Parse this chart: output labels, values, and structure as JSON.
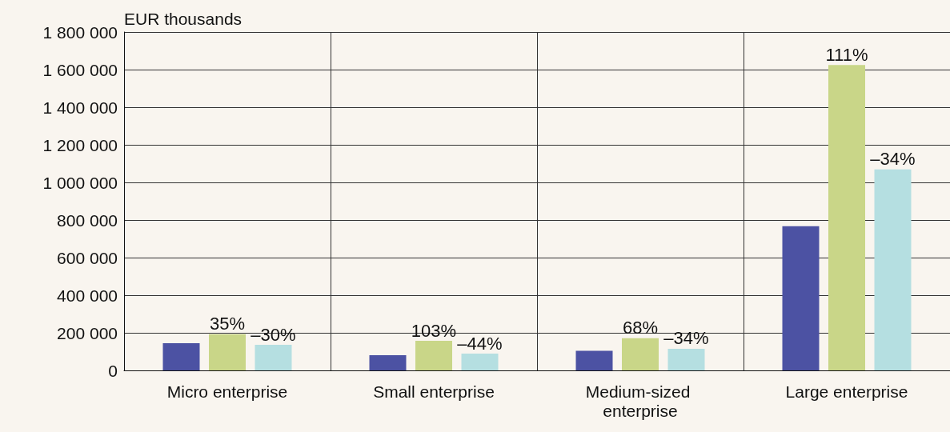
{
  "chart_data": {
    "type": "bar",
    "ylabel": "EUR thousands",
    "categories": [
      "Micro enterprise",
      "Small enterprise",
      "Medium-sized enterprise",
      "Large enterprise"
    ],
    "series": [
      {
        "color": "#4c52a3",
        "values": [
          145000,
          81000,
          104000,
          767000
        ]
      },
      {
        "color": "#c9d688",
        "values": [
          193000,
          157000,
          171000,
          1624000
        ]
      },
      {
        "color": "#b5dfe1",
        "values": [
          136000,
          89000,
          115000,
          1069000
        ]
      }
    ],
    "annotations": [
      "35%",
      "103%",
      "68%",
      "111%",
      "–30%",
      "–44%",
      "–34%",
      "–34%"
    ],
    "ylim": [
      0,
      1800000
    ],
    "yticks": [
      0,
      {
        "value": 200000,
        "label": "200 000"
      },
      {
        "value": 400000,
        "label": "400 000"
      },
      {
        "value": 600000,
        "label": "600 000"
      },
      {
        "value": 800000,
        "label": "800 000"
      },
      {
        "value": 1000000,
        "label": "1 000 000"
      },
      {
        "value": 1200000,
        "label": "1 200 000"
      },
      {
        "value": 1400000,
        "label": "1 400 000"
      },
      {
        "value": 1600000,
        "label": "1 600 000"
      },
      {
        "value": 1800000,
        "label": "1 800 000"
      }
    ],
    "grid": true
  }
}
